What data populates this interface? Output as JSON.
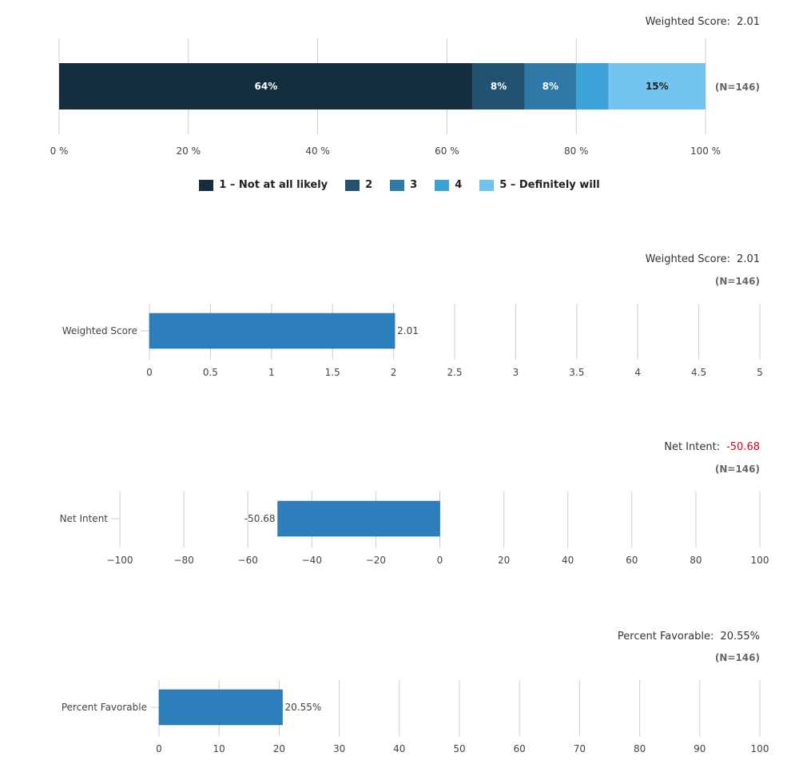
{
  "colors": {
    "scale": [
      "#142e40",
      "#215370",
      "#2f79a6",
      "#3ca3d9",
      "#73c3f0"
    ],
    "bar": "#2d7fbb",
    "grid": "#cccccc",
    "negative": "#e0001b"
  },
  "chart_data": [
    {
      "type": "bar",
      "orientation": "horizontal",
      "stacked": true,
      "xlim": [
        0,
        100
      ],
      "x_ticks": [
        "0 %",
        "20 %",
        "40 %",
        "60 %",
        "80 %",
        "100 %"
      ],
      "series": [
        {
          "name": "1 – Not at all likely",
          "values": [
            64
          ],
          "label": "64%"
        },
        {
          "name": "2",
          "values": [
            8
          ],
          "label": "8%"
        },
        {
          "name": "3",
          "values": [
            8
          ],
          "label": "8%"
        },
        {
          "name": "4",
          "values": [
            5
          ],
          "label": ""
        },
        {
          "name": "5 – Definitely will",
          "values": [
            15
          ],
          "label": "15%"
        }
      ],
      "header_label": "Weighted Score:",
      "header_value": "2.01",
      "n": "(N=146)",
      "legend": "bottom"
    },
    {
      "type": "bar",
      "orientation": "horizontal",
      "categories": [
        "Weighted Score"
      ],
      "values": [
        2.01
      ],
      "value_label": "2.01",
      "xlim": [
        0,
        5
      ],
      "x_ticks": [
        "0",
        "0.5",
        "1",
        "1.5",
        "2",
        "2.5",
        "3",
        "3.5",
        "4",
        "4.5",
        "5"
      ],
      "header_label": "Weighted Score:",
      "header_value": "2.01",
      "n": "(N=146)"
    },
    {
      "type": "bar",
      "orientation": "horizontal",
      "categories": [
        "Net Intent"
      ],
      "values": [
        -50.68
      ],
      "value_label": "-50.68",
      "xlim": [
        -100,
        100
      ],
      "x_ticks": [
        "−100",
        "−80",
        "−60",
        "−40",
        "−20",
        "0",
        "20",
        "40",
        "60",
        "80",
        "100"
      ],
      "header_label": "Net Intent:",
      "header_value": "-50.68",
      "n": "(N=146)"
    },
    {
      "type": "bar",
      "orientation": "horizontal",
      "categories": [
        "Percent Favorable"
      ],
      "values": [
        20.55
      ],
      "value_label": "20.55%",
      "xlim": [
        0,
        100
      ],
      "x_ticks": [
        "0",
        "10",
        "20",
        "30",
        "40",
        "50",
        "60",
        "70",
        "80",
        "90",
        "100"
      ],
      "header_label": "Percent Favorable:",
      "header_value": "20.55%",
      "n": "(N=146)"
    }
  ]
}
